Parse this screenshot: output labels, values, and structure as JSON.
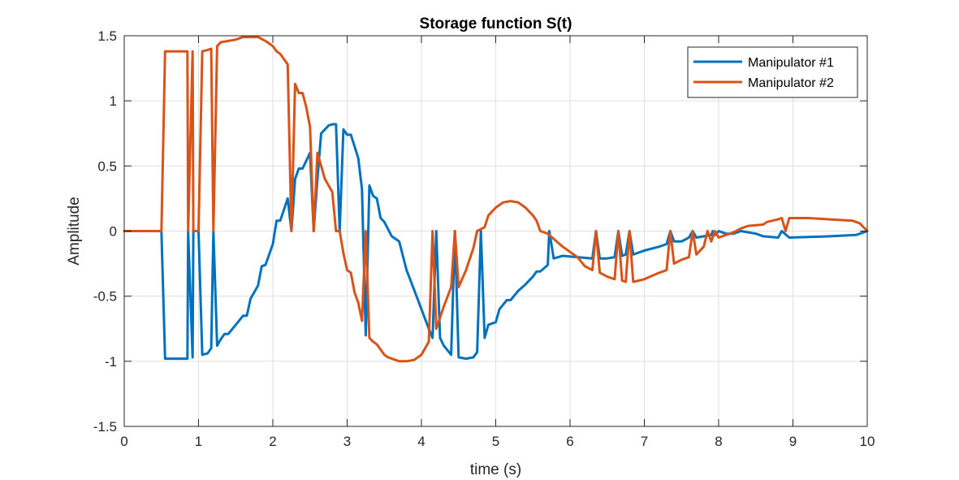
{
  "chart_data": {
    "type": "line",
    "title": "Storage function S(t)",
    "xlabel": "time (s)",
    "ylabel": "Amplitude",
    "xlim": [
      0,
      10
    ],
    "ylim": [
      -1.5,
      1.5
    ],
    "xticks": [
      0,
      1,
      2,
      3,
      4,
      5,
      6,
      7,
      8,
      9,
      10
    ],
    "yticks": [
      -1.5,
      -1,
      -0.5,
      0,
      0.5,
      1,
      1.5
    ],
    "xtick_labels": [
      "0",
      "1",
      "2",
      "3",
      "4",
      "5",
      "6",
      "7",
      "8",
      "9",
      "10"
    ],
    "ytick_labels": [
      "-1.5",
      "-1",
      "-0.5",
      "0",
      "0.5",
      "1",
      "1.5"
    ],
    "grid": true,
    "legend_position": "top-right",
    "series": [
      {
        "name": "Manipulator #1",
        "color": "#0072BD",
        "points": [
          [
            0,
            0
          ],
          [
            0.5,
            0
          ],
          [
            0.55,
            -0.98
          ],
          [
            0.85,
            -0.98
          ],
          [
            0.86,
            0
          ],
          [
            0.92,
            -0.97
          ],
          [
            0.93,
            0
          ],
          [
            1.0,
            0
          ],
          [
            1.05,
            -0.95
          ],
          [
            1.12,
            -0.94
          ],
          [
            1.17,
            -0.9
          ],
          [
            1.2,
            0
          ],
          [
            1.25,
            -0.88
          ],
          [
            1.3,
            -0.83
          ],
          [
            1.35,
            -0.79
          ],
          [
            1.4,
            -0.79
          ],
          [
            1.5,
            -0.72
          ],
          [
            1.6,
            -0.65
          ],
          [
            1.65,
            -0.65
          ],
          [
            1.7,
            -0.52
          ],
          [
            1.8,
            -0.42
          ],
          [
            1.85,
            -0.27
          ],
          [
            1.9,
            -0.26
          ],
          [
            2.0,
            -0.1
          ],
          [
            2.05,
            0.08
          ],
          [
            2.1,
            0.08
          ],
          [
            2.2,
            0.25
          ],
          [
            2.25,
            0
          ],
          [
            2.3,
            0.4
          ],
          [
            2.35,
            0.48
          ],
          [
            2.4,
            0.48
          ],
          [
            2.5,
            0.6
          ],
          [
            2.55,
            0
          ],
          [
            2.6,
            0.4
          ],
          [
            2.65,
            0.75
          ],
          [
            2.75,
            0.81
          ],
          [
            2.8,
            0.82
          ],
          [
            2.85,
            0.82
          ],
          [
            2.9,
            0
          ],
          [
            2.95,
            0.78
          ],
          [
            3.0,
            0.74
          ],
          [
            3.05,
            0.74
          ],
          [
            3.15,
            0.56
          ],
          [
            3.2,
            0.32
          ],
          [
            3.25,
            -0.8
          ],
          [
            3.3,
            0.35
          ],
          [
            3.35,
            0.27
          ],
          [
            3.4,
            0.25
          ],
          [
            3.45,
            0.1
          ],
          [
            3.5,
            0.07
          ],
          [
            3.6,
            -0.04
          ],
          [
            3.7,
            -0.08
          ],
          [
            3.8,
            -0.3
          ],
          [
            3.9,
            -0.45
          ],
          [
            4.0,
            -0.6
          ],
          [
            4.1,
            -0.75
          ],
          [
            4.15,
            -0.82
          ],
          [
            4.2,
            0
          ],
          [
            4.25,
            -0.82
          ],
          [
            4.3,
            -0.88
          ],
          [
            4.4,
            -0.95
          ],
          [
            4.45,
            0
          ],
          [
            4.5,
            -0.97
          ],
          [
            4.6,
            -0.98
          ],
          [
            4.7,
            -0.97
          ],
          [
            4.75,
            -0.93
          ],
          [
            4.8,
            0
          ],
          [
            4.85,
            -0.82
          ],
          [
            4.9,
            -0.72
          ],
          [
            5.0,
            -0.7
          ],
          [
            5.05,
            -0.6
          ],
          [
            5.15,
            -0.53
          ],
          [
            5.2,
            -0.53
          ],
          [
            5.3,
            -0.46
          ],
          [
            5.4,
            -0.41
          ],
          [
            5.5,
            -0.35
          ],
          [
            5.55,
            -0.31
          ],
          [
            5.6,
            -0.31
          ],
          [
            5.7,
            -0.26
          ],
          [
            5.72,
            0
          ],
          [
            5.78,
            -0.21
          ],
          [
            5.9,
            -0.19
          ],
          [
            6.1,
            -0.2
          ],
          [
            6.3,
            -0.21
          ],
          [
            6.35,
            0
          ],
          [
            6.4,
            -0.21
          ],
          [
            6.5,
            -0.21
          ],
          [
            6.6,
            -0.2
          ],
          [
            6.65,
            0
          ],
          [
            6.7,
            -0.19
          ],
          [
            6.75,
            -0.18
          ],
          [
            6.8,
            0
          ],
          [
            6.85,
            -0.18
          ],
          [
            7.0,
            -0.15
          ],
          [
            7.2,
            -0.12
          ],
          [
            7.3,
            -0.1
          ],
          [
            7.35,
            0
          ],
          [
            7.4,
            -0.08
          ],
          [
            7.5,
            -0.08
          ],
          [
            7.6,
            -0.05
          ],
          [
            7.65,
            0
          ],
          [
            7.7,
            -0.05
          ],
          [
            7.9,
            -0.03
          ],
          [
            7.92,
            0
          ],
          [
            7.95,
            -0.03
          ],
          [
            8.0,
            0
          ],
          [
            8.1,
            -0.02
          ],
          [
            8.2,
            -0.02
          ],
          [
            8.3,
            0
          ],
          [
            8.5,
            -0.02
          ],
          [
            8.6,
            -0.04
          ],
          [
            8.8,
            -0.05
          ],
          [
            8.85,
            0
          ],
          [
            8.95,
            -0.05
          ],
          [
            9.5,
            -0.04
          ],
          [
            9.85,
            -0.03
          ],
          [
            10.0,
            0
          ]
        ]
      },
      {
        "name": "Manipulator #2",
        "color": "#D95319",
        "points": [
          [
            0,
            0
          ],
          [
            0.5,
            0
          ],
          [
            0.55,
            1.38
          ],
          [
            0.85,
            1.38
          ],
          [
            0.86,
            0
          ],
          [
            0.92,
            1.38
          ],
          [
            0.93,
            0
          ],
          [
            1.0,
            0
          ],
          [
            1.05,
            1.38
          ],
          [
            1.12,
            1.39
          ],
          [
            1.17,
            1.4
          ],
          [
            1.2,
            0
          ],
          [
            1.25,
            1.42
          ],
          [
            1.3,
            1.45
          ],
          [
            1.4,
            1.46
          ],
          [
            1.5,
            1.47
          ],
          [
            1.6,
            1.49
          ],
          [
            1.7,
            1.49
          ],
          [
            1.8,
            1.49
          ],
          [
            1.9,
            1.46
          ],
          [
            2.0,
            1.42
          ],
          [
            2.05,
            1.38
          ],
          [
            2.1,
            1.36
          ],
          [
            2.15,
            1.32
          ],
          [
            2.2,
            1.28
          ],
          [
            2.25,
            0
          ],
          [
            2.3,
            1.13
          ],
          [
            2.35,
            1.06
          ],
          [
            2.4,
            1.06
          ],
          [
            2.45,
            0.95
          ],
          [
            2.5,
            0.8
          ],
          [
            2.55,
            0
          ],
          [
            2.6,
            0.6
          ],
          [
            2.7,
            0.4
          ],
          [
            2.8,
            0.3
          ],
          [
            2.85,
            0
          ],
          [
            2.9,
            0
          ],
          [
            2.95,
            -0.17
          ],
          [
            3.0,
            -0.3
          ],
          [
            3.05,
            -0.32
          ],
          [
            3.1,
            -0.47
          ],
          [
            3.15,
            -0.55
          ],
          [
            3.2,
            -0.69
          ],
          [
            3.25,
            0
          ],
          [
            3.3,
            -0.82
          ],
          [
            3.35,
            -0.85
          ],
          [
            3.4,
            -0.87
          ],
          [
            3.5,
            -0.95
          ],
          [
            3.55,
            -0.97
          ],
          [
            3.6,
            -0.98
          ],
          [
            3.7,
            -1.0
          ],
          [
            3.8,
            -1.0
          ],
          [
            3.9,
            -0.99
          ],
          [
            4.0,
            -0.95
          ],
          [
            4.1,
            -0.85
          ],
          [
            4.15,
            0
          ],
          [
            4.2,
            -0.75
          ],
          [
            4.3,
            -0.58
          ],
          [
            4.4,
            -0.43
          ],
          [
            4.45,
            0
          ],
          [
            4.5,
            -0.43
          ],
          [
            4.6,
            -0.3
          ],
          [
            4.7,
            -0.13
          ],
          [
            4.75,
            0
          ],
          [
            4.85,
            0.03
          ],
          [
            4.9,
            0.12
          ],
          [
            5.0,
            0.18
          ],
          [
            5.1,
            0.22
          ],
          [
            5.2,
            0.23
          ],
          [
            5.3,
            0.22
          ],
          [
            5.4,
            0.18
          ],
          [
            5.5,
            0.12
          ],
          [
            5.55,
            0.08
          ],
          [
            5.6,
            0
          ],
          [
            5.7,
            -0.02
          ],
          [
            5.9,
            -0.12
          ],
          [
            6.1,
            -0.2
          ],
          [
            6.2,
            -0.27
          ],
          [
            6.3,
            -0.3
          ],
          [
            6.35,
            0
          ],
          [
            6.4,
            -0.32
          ],
          [
            6.5,
            -0.35
          ],
          [
            6.6,
            -0.37
          ],
          [
            6.65,
            0
          ],
          [
            6.7,
            -0.38
          ],
          [
            6.75,
            -0.39
          ],
          [
            6.8,
            0
          ],
          [
            6.85,
            -0.39
          ],
          [
            7.0,
            -0.37
          ],
          [
            7.2,
            -0.32
          ],
          [
            7.3,
            -0.3
          ],
          [
            7.35,
            0
          ],
          [
            7.4,
            -0.25
          ],
          [
            7.5,
            -0.22
          ],
          [
            7.6,
            -0.2
          ],
          [
            7.65,
            0
          ],
          [
            7.7,
            -0.18
          ],
          [
            7.8,
            -0.12
          ],
          [
            7.85,
            0
          ],
          [
            7.9,
            -0.08
          ],
          [
            7.95,
            0
          ],
          [
            8.0,
            -0.05
          ],
          [
            8.1,
            -0.03
          ],
          [
            8.2,
            -0.01
          ],
          [
            8.3,
            0.02
          ],
          [
            8.4,
            0.04
          ],
          [
            8.6,
            0.05
          ],
          [
            8.65,
            0.07
          ],
          [
            8.8,
            0.09
          ],
          [
            8.85,
            0.1
          ],
          [
            8.9,
            0
          ],
          [
            8.95,
            0.1
          ],
          [
            9.2,
            0.1
          ],
          [
            9.5,
            0.09
          ],
          [
            9.8,
            0.08
          ],
          [
            9.9,
            0.06
          ],
          [
            10.0,
            0
          ]
        ]
      }
    ]
  }
}
